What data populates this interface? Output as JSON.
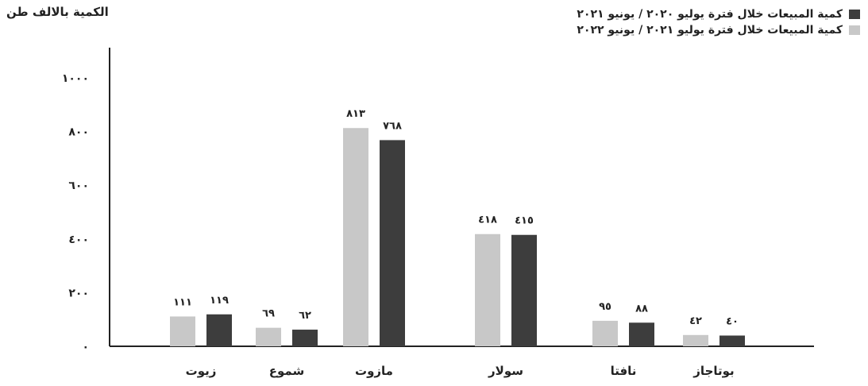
{
  "chart_data": {
    "type": "bar",
    "ylabel": "الكمية بالالف طن",
    "ylim": [
      0,
      1000
    ],
    "yticks": [
      {
        "value": 0,
        "label": "٠"
      },
      {
        "value": 200,
        "label": "٢٠٠"
      },
      {
        "value": 400,
        "label": "٤٠٠"
      },
      {
        "value": 600,
        "label": "٦٠٠"
      },
      {
        "value": 800,
        "label": "٨٠٠"
      },
      {
        "value": 1000,
        "label": "١٠٠٠"
      }
    ],
    "categories": [
      "زيوت",
      "شموع",
      "مازوت",
      "سولار",
      "نافتا",
      "بوتاجاز"
    ],
    "series": [
      {
        "name": "كمية المبيعات خلال فترة يوليو ٢٠٢١ / يونيو ٢٠٢٢",
        "color": "#c8c8c8",
        "values": [
          111,
          69,
          813,
          418,
          95,
          42
        ],
        "labels": [
          "١١١",
          "٦٩",
          "٨١٣",
          "٤١٨",
          "٩٥",
          "٤٢"
        ]
      },
      {
        "name": "كمية المبيعات خلال فترة يوليو ٢٠٢٠ / يونيو ٢٠٢١",
        "color": "#3d3d3d",
        "values": [
          119,
          62,
          768,
          415,
          88,
          40
        ],
        "labels": [
          "١١٩",
          "٦٢",
          "٧٦٨",
          "٤١٥",
          "٨٨",
          "٤٠"
        ]
      }
    ],
    "legend_position": "top-right",
    "grid": false
  }
}
